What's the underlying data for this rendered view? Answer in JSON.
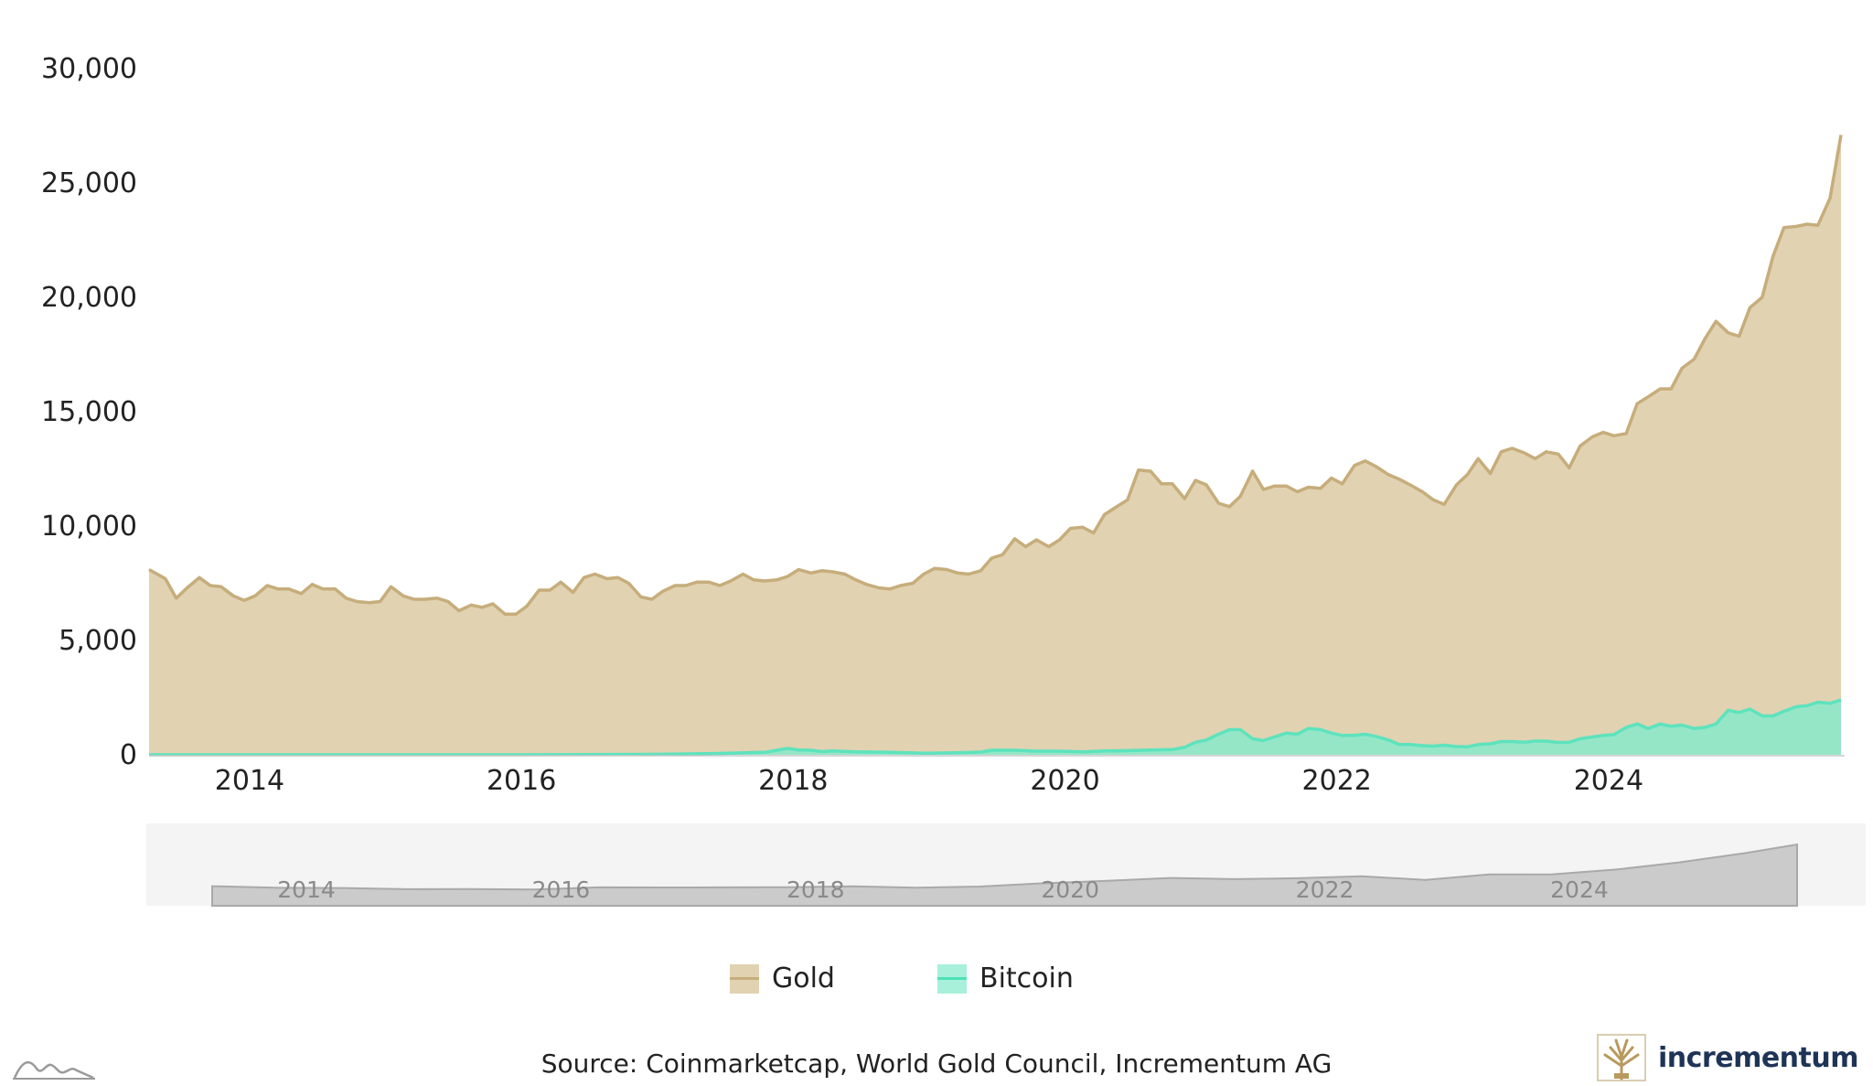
{
  "chart_data": {
    "type": "area",
    "y_ticks": [
      "30,000",
      "25,000",
      "20,000",
      "15,000",
      "10,000",
      "5,000",
      "0"
    ],
    "x_ticks": [
      "2014",
      "2016",
      "2018",
      "2020",
      "2022",
      "2024"
    ],
    "ylim": [
      0,
      30000
    ],
    "xlim": [
      2013.3,
      2025.75
    ],
    "series": [
      {
        "name": "Gold",
        "color": "#c6ad7b",
        "fill": "#e1d2b1",
        "points": [
          [
            2013.3,
            8100
          ],
          [
            2013.42,
            7700
          ],
          [
            2013.5,
            6850
          ],
          [
            2013.58,
            7300
          ],
          [
            2013.67,
            7750
          ],
          [
            2013.75,
            7400
          ],
          [
            2013.83,
            7350
          ],
          [
            2013.92,
            6950
          ],
          [
            2014.0,
            6750
          ],
          [
            2014.08,
            6950
          ],
          [
            2014.17,
            7400
          ],
          [
            2014.25,
            7250
          ],
          [
            2014.33,
            7250
          ],
          [
            2014.42,
            7050
          ],
          [
            2014.5,
            7450
          ],
          [
            2014.58,
            7250
          ],
          [
            2014.67,
            7250
          ],
          [
            2014.75,
            6850
          ],
          [
            2014.83,
            6700
          ],
          [
            2014.92,
            6650
          ],
          [
            2015.0,
            6700
          ],
          [
            2015.08,
            7350
          ],
          [
            2015.17,
            6950
          ],
          [
            2015.25,
            6800
          ],
          [
            2015.33,
            6800
          ],
          [
            2015.42,
            6850
          ],
          [
            2015.5,
            6700
          ],
          [
            2015.58,
            6300
          ],
          [
            2015.67,
            6550
          ],
          [
            2015.75,
            6450
          ],
          [
            2015.83,
            6600
          ],
          [
            2015.92,
            6150
          ],
          [
            2016.0,
            6150
          ],
          [
            2016.08,
            6500
          ],
          [
            2016.17,
            7200
          ],
          [
            2016.25,
            7200
          ],
          [
            2016.33,
            7550
          ],
          [
            2016.42,
            7100
          ],
          [
            2016.5,
            7750
          ],
          [
            2016.58,
            7900
          ],
          [
            2016.67,
            7700
          ],
          [
            2016.75,
            7750
          ],
          [
            2016.83,
            7500
          ],
          [
            2016.92,
            6900
          ],
          [
            2017.0,
            6800
          ],
          [
            2017.08,
            7150
          ],
          [
            2017.17,
            7400
          ],
          [
            2017.25,
            7400
          ],
          [
            2017.33,
            7550
          ],
          [
            2017.42,
            7550
          ],
          [
            2017.5,
            7400
          ],
          [
            2017.58,
            7600
          ],
          [
            2017.67,
            7900
          ],
          [
            2017.75,
            7650
          ],
          [
            2017.83,
            7600
          ],
          [
            2017.92,
            7650
          ],
          [
            2018.0,
            7800
          ],
          [
            2018.08,
            8100
          ],
          [
            2018.17,
            7950
          ],
          [
            2018.25,
            8050
          ],
          [
            2018.33,
            8000
          ],
          [
            2018.42,
            7900
          ],
          [
            2018.5,
            7650
          ],
          [
            2018.58,
            7450
          ],
          [
            2018.67,
            7300
          ],
          [
            2018.75,
            7250
          ],
          [
            2018.83,
            7400
          ],
          [
            2018.92,
            7500
          ],
          [
            2019.0,
            7900
          ],
          [
            2019.08,
            8150
          ],
          [
            2019.17,
            8100
          ],
          [
            2019.25,
            7950
          ],
          [
            2019.33,
            7900
          ],
          [
            2019.42,
            8050
          ],
          [
            2019.5,
            8600
          ],
          [
            2019.58,
            8750
          ],
          [
            2019.67,
            9450
          ],
          [
            2019.75,
            9100
          ],
          [
            2019.83,
            9400
          ],
          [
            2019.92,
            9100
          ],
          [
            2020.0,
            9400
          ],
          [
            2020.08,
            9900
          ],
          [
            2020.17,
            9950
          ],
          [
            2020.25,
            9700
          ],
          [
            2020.33,
            10500
          ],
          [
            2020.42,
            10850
          ],
          [
            2020.5,
            11150
          ],
          [
            2020.58,
            12450
          ],
          [
            2020.67,
            12400
          ],
          [
            2020.75,
            11850
          ],
          [
            2020.83,
            11850
          ],
          [
            2020.92,
            11200
          ],
          [
            2021.0,
            12000
          ],
          [
            2021.08,
            11800
          ],
          [
            2021.17,
            11000
          ],
          [
            2021.25,
            10850
          ],
          [
            2021.33,
            11300
          ],
          [
            2021.42,
            12400
          ],
          [
            2021.5,
            11600
          ],
          [
            2021.58,
            11750
          ],
          [
            2021.67,
            11750
          ],
          [
            2021.75,
            11500
          ],
          [
            2021.83,
            11700
          ],
          [
            2021.92,
            11650
          ],
          [
            2022.0,
            12100
          ],
          [
            2022.08,
            11850
          ],
          [
            2022.17,
            12650
          ],
          [
            2022.25,
            12850
          ],
          [
            2022.33,
            12600
          ],
          [
            2022.42,
            12250
          ],
          [
            2022.5,
            12050
          ],
          [
            2022.58,
            11800
          ],
          [
            2022.67,
            11500
          ],
          [
            2022.75,
            11150
          ],
          [
            2022.83,
            10950
          ],
          [
            2022.92,
            11800
          ],
          [
            2023.0,
            12250
          ],
          [
            2023.08,
            12950
          ],
          [
            2023.17,
            12300
          ],
          [
            2023.25,
            13250
          ],
          [
            2023.33,
            13400
          ],
          [
            2023.42,
            13200
          ],
          [
            2023.5,
            12950
          ],
          [
            2023.58,
            13250
          ],
          [
            2023.67,
            13150
          ],
          [
            2023.75,
            12550
          ],
          [
            2023.83,
            13500
          ],
          [
            2023.92,
            13900
          ],
          [
            2024.0,
            14100
          ],
          [
            2024.08,
            13950
          ],
          [
            2024.17,
            14050
          ],
          [
            2024.25,
            15350
          ],
          [
            2024.33,
            15650
          ],
          [
            2024.42,
            16000
          ],
          [
            2024.5,
            16000
          ],
          [
            2024.58,
            16900
          ],
          [
            2024.67,
            17300
          ],
          [
            2024.75,
            18200
          ],
          [
            2024.83,
            18950
          ],
          [
            2024.92,
            18450
          ],
          [
            2025.0,
            18300
          ],
          [
            2025.08,
            19550
          ],
          [
            2025.17,
            20000
          ],
          [
            2025.25,
            21800
          ],
          [
            2025.33,
            23050
          ],
          [
            2025.42,
            23100
          ],
          [
            2025.5,
            23200
          ],
          [
            2025.58,
            23150
          ],
          [
            2025.67,
            24350
          ],
          [
            2025.75,
            27100
          ]
        ]
      },
      {
        "name": "Bitcoin",
        "color": "#5de3bd",
        "fill": "#95e6c7",
        "points": [
          [
            2013.3,
            0
          ],
          [
            2014.0,
            0
          ],
          [
            2015.0,
            0
          ],
          [
            2016.0,
            0
          ],
          [
            2016.5,
            10
          ],
          [
            2017.0,
            20
          ],
          [
            2017.5,
            60
          ],
          [
            2017.83,
            110
          ],
          [
            2017.92,
            200
          ],
          [
            2018.0,
            280
          ],
          [
            2018.08,
            210
          ],
          [
            2018.17,
            200
          ],
          [
            2018.25,
            140
          ],
          [
            2018.33,
            170
          ],
          [
            2018.5,
            130
          ],
          [
            2018.75,
            110
          ],
          [
            2019.0,
            70
          ],
          [
            2019.25,
            90
          ],
          [
            2019.42,
            120
          ],
          [
            2019.5,
            200
          ],
          [
            2019.67,
            200
          ],
          [
            2019.83,
            160
          ],
          [
            2020.0,
            160
          ],
          [
            2020.17,
            130
          ],
          [
            2020.33,
            170
          ],
          [
            2020.5,
            180
          ],
          [
            2020.67,
            210
          ],
          [
            2020.83,
            230
          ],
          [
            2020.92,
            330
          ],
          [
            2021.0,
            550
          ],
          [
            2021.08,
            650
          ],
          [
            2021.17,
            900
          ],
          [
            2021.25,
            1100
          ],
          [
            2021.33,
            1100
          ],
          [
            2021.42,
            700
          ],
          [
            2021.5,
            620
          ],
          [
            2021.58,
            780
          ],
          [
            2021.67,
            950
          ],
          [
            2021.75,
            900
          ],
          [
            2021.83,
            1150
          ],
          [
            2021.92,
            1100
          ],
          [
            2022.0,
            950
          ],
          [
            2022.08,
            850
          ],
          [
            2022.17,
            850
          ],
          [
            2022.25,
            900
          ],
          [
            2022.33,
            800
          ],
          [
            2022.42,
            650
          ],
          [
            2022.5,
            450
          ],
          [
            2022.58,
            450
          ],
          [
            2022.67,
            400
          ],
          [
            2022.75,
            380
          ],
          [
            2022.83,
            420
          ],
          [
            2022.92,
            360
          ],
          [
            2023.0,
            350
          ],
          [
            2023.08,
            450
          ],
          [
            2023.17,
            480
          ],
          [
            2023.25,
            580
          ],
          [
            2023.33,
            580
          ],
          [
            2023.42,
            550
          ],
          [
            2023.5,
            600
          ],
          [
            2023.58,
            600
          ],
          [
            2023.67,
            540
          ],
          [
            2023.75,
            550
          ],
          [
            2023.83,
            700
          ],
          [
            2023.92,
            780
          ],
          [
            2024.0,
            850
          ],
          [
            2024.08,
            880
          ],
          [
            2024.17,
            1200
          ],
          [
            2024.25,
            1350
          ],
          [
            2024.33,
            1150
          ],
          [
            2024.42,
            1350
          ],
          [
            2024.5,
            1250
          ],
          [
            2024.58,
            1300
          ],
          [
            2024.67,
            1150
          ],
          [
            2024.75,
            1200
          ],
          [
            2024.83,
            1350
          ],
          [
            2024.92,
            1950
          ],
          [
            2025.0,
            1850
          ],
          [
            2025.08,
            2000
          ],
          [
            2025.17,
            1700
          ],
          [
            2025.25,
            1700
          ],
          [
            2025.33,
            1900
          ],
          [
            2025.42,
            2100
          ],
          [
            2025.5,
            2150
          ],
          [
            2025.58,
            2300
          ],
          [
            2025.67,
            2250
          ],
          [
            2025.75,
            2400
          ]
        ]
      }
    ],
    "navigator": {
      "x_ticks": [
        "2014",
        "2016",
        "2018",
        "2020",
        "2022",
        "2024"
      ],
      "fill": "#cbcbcb",
      "stroke": "#a9a9a9",
      "background": "#f4f4f4"
    }
  },
  "legend": {
    "items": [
      {
        "label": "Gold",
        "fill": "#e1d2b1",
        "line": "#c6ad7b"
      },
      {
        "label": "Bitcoin",
        "fill": "#a8f0da",
        "line": "#4fe0b8"
      }
    ]
  },
  "source": "Source: Coinmarketcap, World Gold Council, Incrementum AG",
  "brand": {
    "name": "incrementum",
    "color": "#1e3457",
    "emblem_color": "#b89a5e"
  }
}
